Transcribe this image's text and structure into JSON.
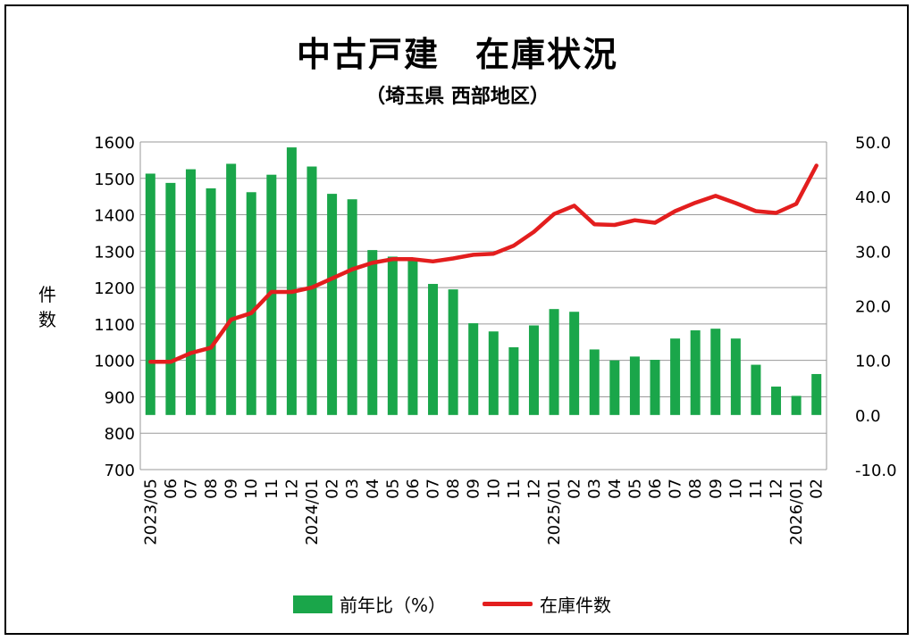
{
  "title": "中古戸建　在庫状況",
  "subtitle": "（埼玉県 西部地区）",
  "colors": {
    "bar": "#1aa64a",
    "line": "#e31e1e",
    "grid": "#9a9a9a",
    "negative_tick": "#e31e1e"
  },
  "chart_data": {
    "type": "bar+line",
    "categories": [
      "2023/05",
      "06",
      "07",
      "08",
      "09",
      "10",
      "11",
      "12",
      "2024/01",
      "02",
      "03",
      "04",
      "05",
      "06",
      "07",
      "08",
      "09",
      "10",
      "11",
      "12",
      "2025/01",
      "02",
      "03",
      "04",
      "05",
      "06",
      "07",
      "08",
      "09",
      "10",
      "11",
      "12",
      "2026/01",
      "02"
    ],
    "ylabel": "件数",
    "ylim_left": [
      700,
      1600
    ],
    "yticks_left": [
      700,
      800,
      900,
      1000,
      1100,
      1200,
      1300,
      1400,
      1500,
      1600
    ],
    "ylim_right": [
      -10.0,
      50.0
    ],
    "yticks_right": [
      "-10.0",
      "0.0",
      "10.0",
      "20.0",
      "30.0",
      "40.0",
      "50.0"
    ],
    "grid": true,
    "legend_position": "bottom",
    "series": [
      {
        "name": "前年比（%）",
        "type": "bar",
        "axis": "right",
        "values": [
          44.2,
          42.5,
          45.0,
          41.5,
          46.0,
          40.8,
          44.0,
          49.0,
          45.5,
          40.5,
          39.5,
          30.2,
          29.0,
          28.3,
          24.0,
          23.0,
          16.8,
          15.3,
          12.4,
          16.4,
          19.4,
          18.9,
          12.0,
          10.0,
          10.7,
          10.1,
          14.0,
          15.5,
          15.8,
          14.0,
          9.2,
          5.2,
          3.5,
          7.5
        ]
      },
      {
        "name": "在庫件数",
        "type": "line",
        "axis": "left",
        "values": [
          996,
          996,
          1020,
          1035,
          1112,
          1130,
          1188,
          1188,
          1200,
          1225,
          1250,
          1268,
          1278,
          1278,
          1272,
          1280,
          1290,
          1293,
          1315,
          1353,
          1402,
          1425,
          1374,
          1372,
          1385,
          1378,
          1410,
          1433,
          1452,
          1432,
          1410,
          1405,
          1430,
          1535
        ]
      }
    ]
  }
}
